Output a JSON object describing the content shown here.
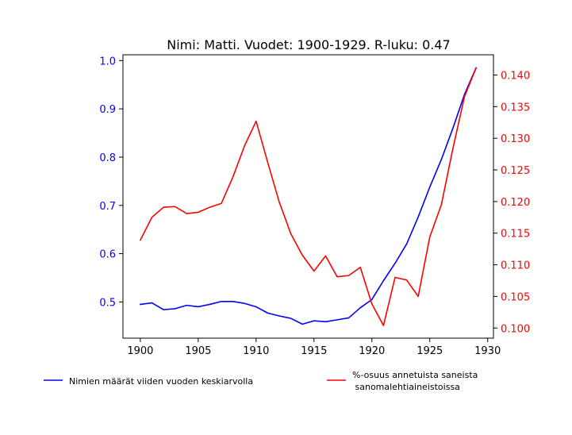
{
  "chart_data": {
    "type": "line",
    "title": "Nimi: Matti. Vuodet: 1900-1929. R-luku: 0.47",
    "xlabel": "",
    "ylabel_left": "",
    "ylabel_right": "",
    "x": [
      1900,
      1901,
      1902,
      1903,
      1904,
      1905,
      1906,
      1907,
      1908,
      1909,
      1910,
      1911,
      1912,
      1913,
      1914,
      1915,
      1916,
      1917,
      1918,
      1919,
      1920,
      1921,
      1922,
      1923,
      1924,
      1925,
      1926,
      1927,
      1928,
      1929
    ],
    "xlim": [
      1898.5,
      1930.5
    ],
    "xticks": [
      "1900",
      "1905",
      "1910",
      "1915",
      "1920",
      "1925",
      "1930"
    ],
    "xtick_values": [
      1900,
      1905,
      1910,
      1915,
      1920,
      1925,
      1930
    ],
    "left_axis": {
      "ylim": [
        0.425,
        1.012
      ],
      "ticks": [
        "0.5",
        "0.6",
        "0.7",
        "0.8",
        "0.9",
        "1.0"
      ],
      "tick_values": [
        0.5,
        0.6,
        0.7,
        0.8,
        0.9,
        1.0
      ],
      "color": "#0000ff"
    },
    "right_axis": {
      "ylim": [
        0.0984,
        0.1432
      ],
      "ticks": [
        "0.100",
        "0.105",
        "0.110",
        "0.115",
        "0.120",
        "0.125",
        "0.130",
        "0.135",
        "0.140"
      ],
      "tick_values": [
        0.1,
        0.105,
        0.11,
        0.115,
        0.12,
        0.125,
        0.13,
        0.135,
        0.14
      ],
      "color": "#ff0000"
    },
    "series": [
      {
        "name": "Nimien määrät viiden vuoden keskiarvolla",
        "axis": "left",
        "color": "#0000ff",
        "values": [
          0.495,
          0.498,
          0.484,
          0.486,
          0.493,
          0.49,
          0.495,
          0.501,
          0.501,
          0.497,
          0.49,
          0.477,
          0.471,
          0.466,
          0.454,
          0.461,
          0.459,
          0.463,
          0.467,
          0.488,
          0.505,
          0.544,
          0.58,
          0.62,
          0.676,
          0.738,
          0.795,
          0.86,
          0.93,
          0.985
        ]
      },
      {
        "name": "%-osuus annetuista saneista\n sanomalehtiaineistoissa",
        "axis": "right",
        "color": "#ff0000",
        "values": [
          0.1139,
          0.1175,
          0.1191,
          0.1192,
          0.1181,
          0.1183,
          0.1191,
          0.1197,
          0.1239,
          0.1288,
          0.1327,
          0.1262,
          0.1199,
          0.1149,
          0.1115,
          0.109,
          0.1114,
          0.1081,
          0.1083,
          0.1096,
          0.1038,
          0.1004,
          0.108,
          0.1076,
          0.105,
          0.1144,
          0.1195,
          0.1284,
          0.1366,
          0.1411
        ]
      }
    ],
    "legend": [
      "Nimien määrät viiden vuoden keskiarvolla",
      "%-osuus annetuista saneista",
      " sanomalehtiaineistoissa"
    ],
    "legend_placement": "bottom",
    "grid": false
  }
}
